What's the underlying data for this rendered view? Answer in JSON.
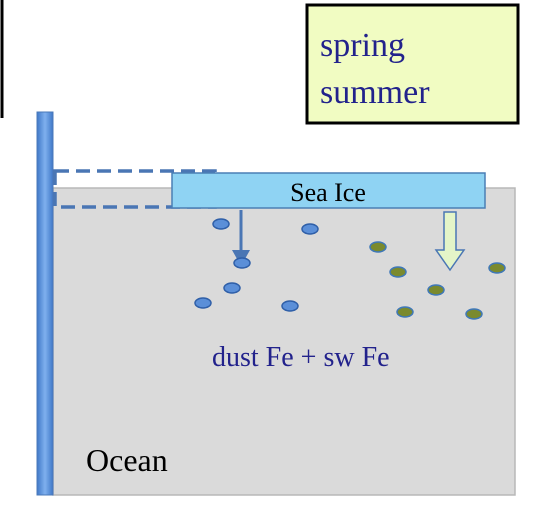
{
  "season_box": {
    "lines": [
      "spring",
      "summer"
    ]
  },
  "sea_ice": {
    "label": "Sea Ice"
  },
  "annotation": "dust Fe + sw Fe",
  "ocean": {
    "label": "Ocean"
  }
}
